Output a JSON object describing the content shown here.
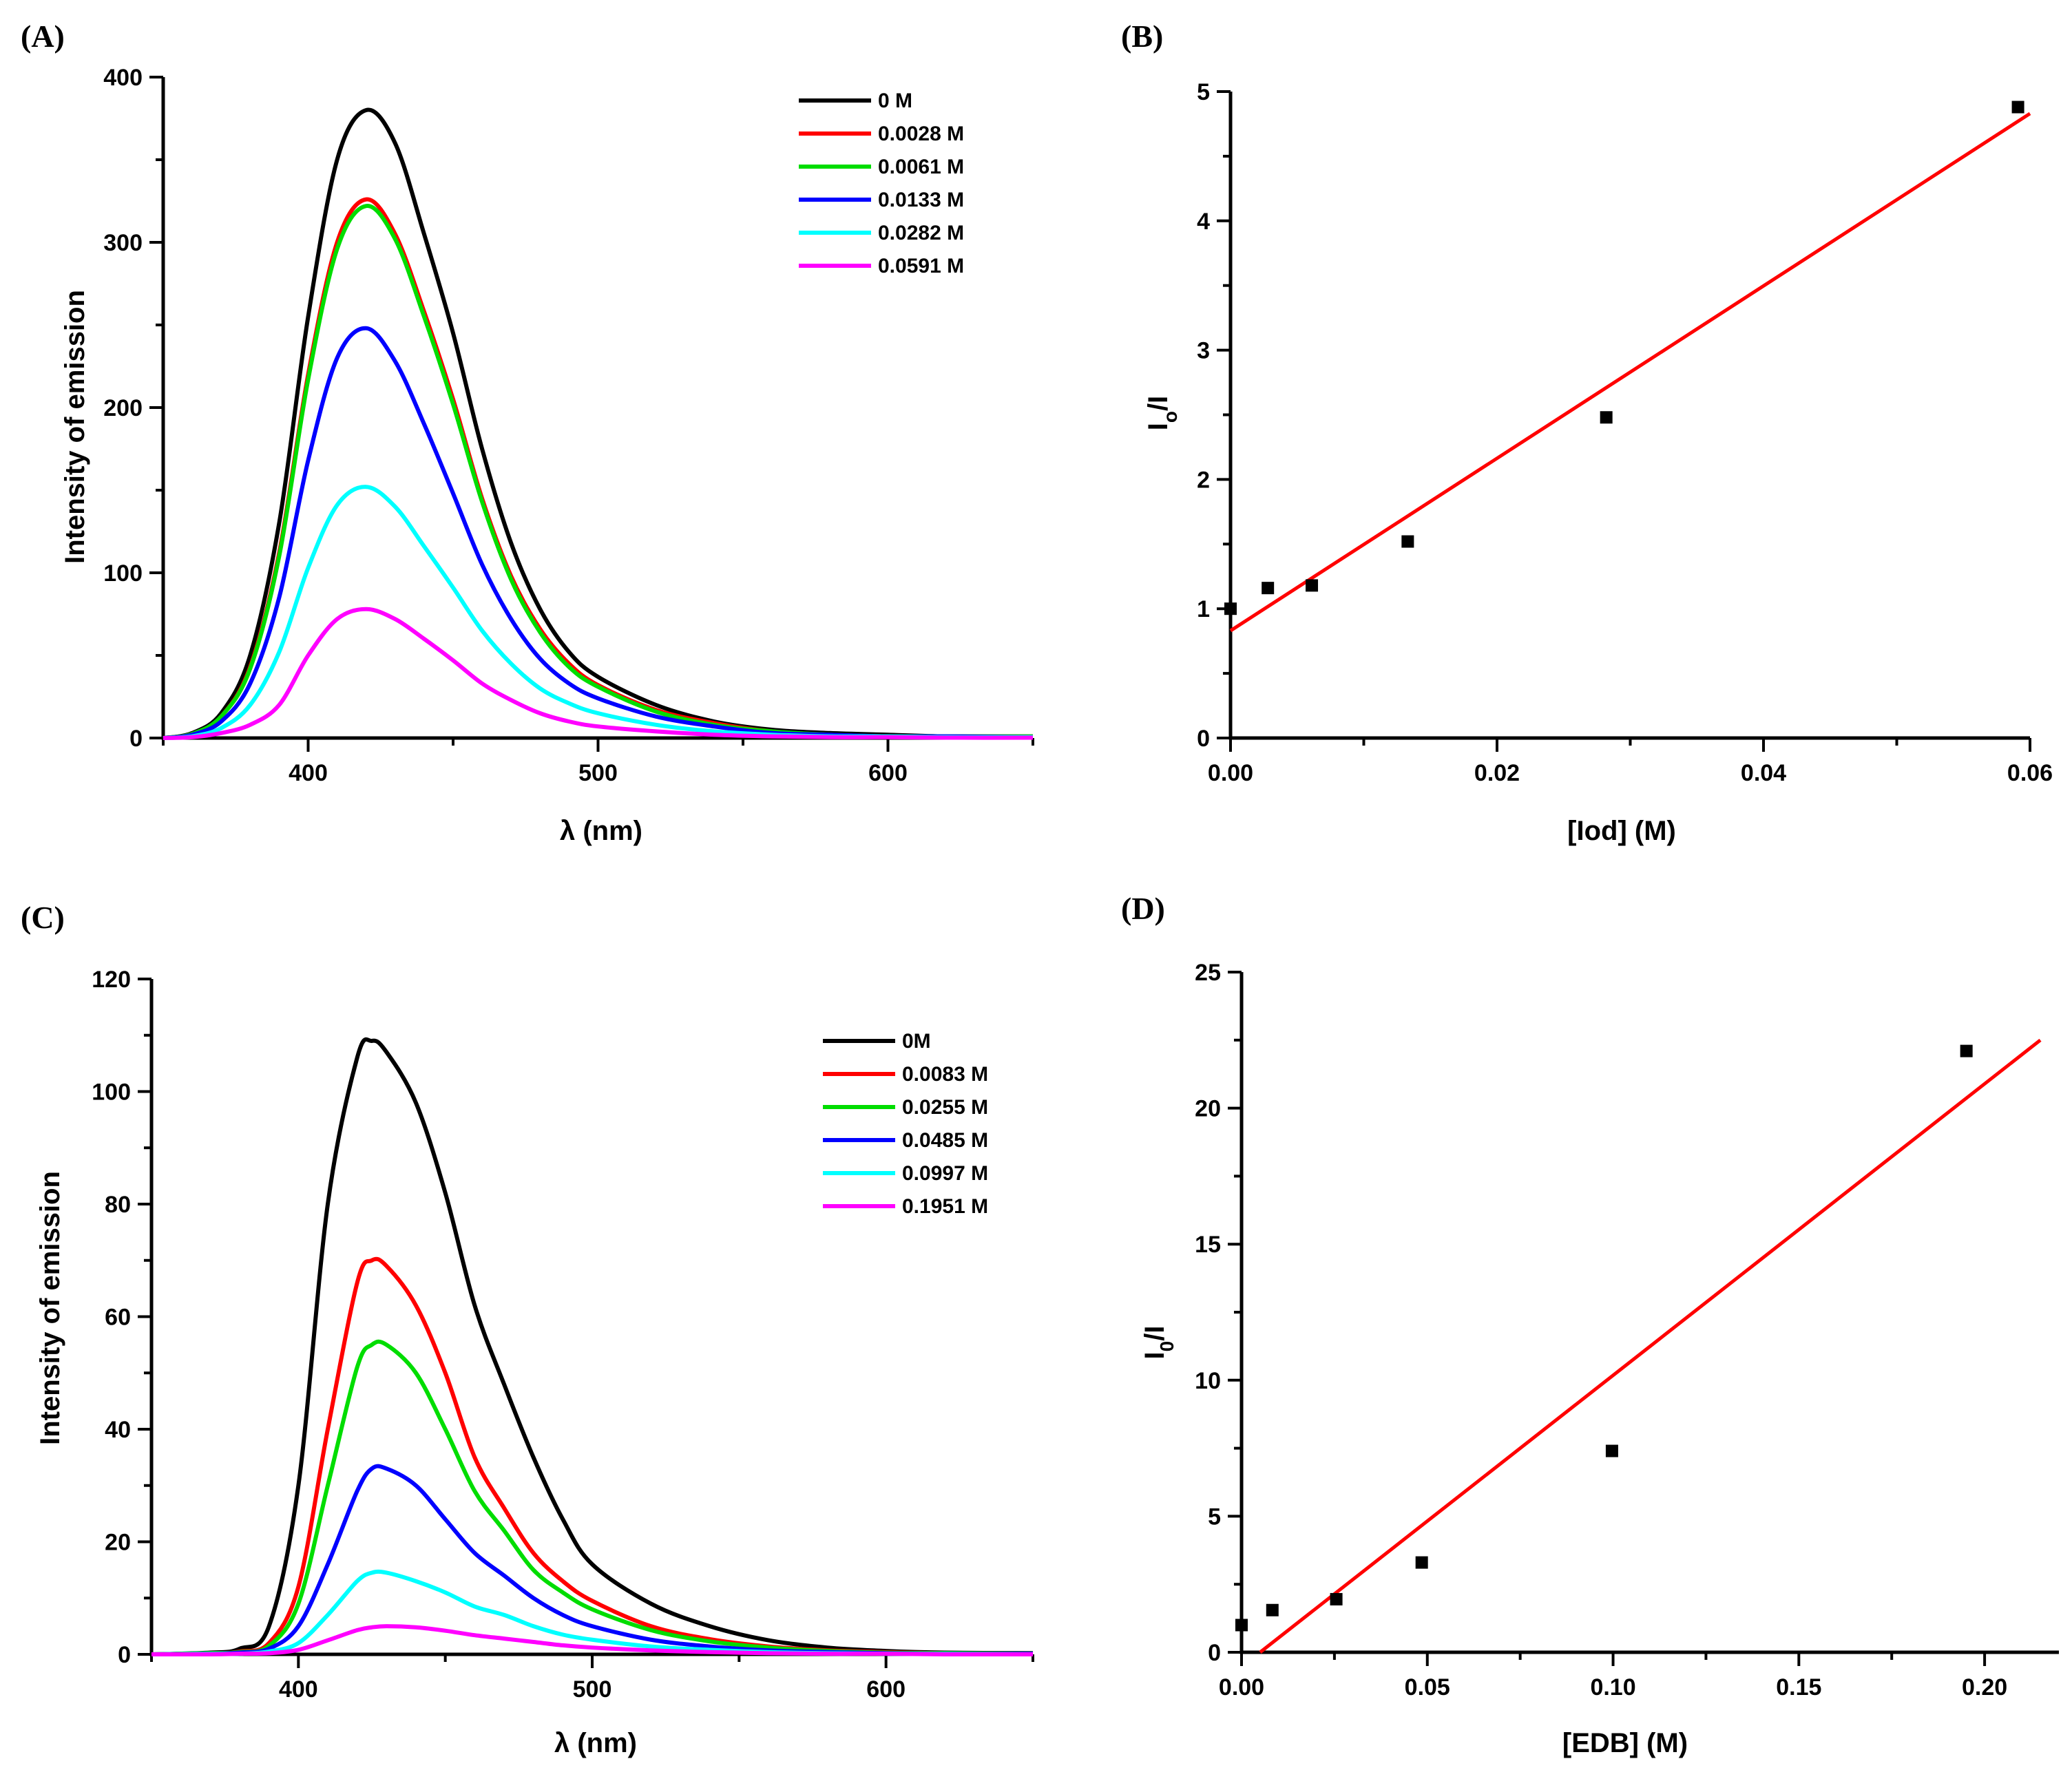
{
  "chart_data": [
    {
      "id": "A",
      "panel_label": "(A)",
      "type": "line",
      "xlabel": "λ (nm)",
      "ylabel": "Intensity of emission",
      "xlim": [
        350,
        650
      ],
      "ylim": [
        0,
        400
      ],
      "xticks": [
        400,
        500,
        600
      ],
      "yticks": [
        0,
        100,
        200,
        300,
        400
      ],
      "x": [
        350,
        360,
        370,
        380,
        390,
        400,
        410,
        420,
        430,
        440,
        450,
        460,
        470,
        480,
        490,
        500,
        520,
        540,
        560,
        580,
        600,
        620,
        650
      ],
      "series": [
        {
          "name": "0 M",
          "color": "#000000",
          "values": [
            0,
            3,
            15,
            50,
            130,
            255,
            350,
            380,
            360,
            305,
            245,
            175,
            118,
            78,
            52,
            37,
            20,
            10,
            5,
            3,
            2,
            1,
            1
          ]
        },
        {
          "name": "0.0028 M",
          "color": "#ff0000",
          "values": [
            0,
            2.5,
            13,
            43,
            112,
            220,
            300,
            326,
            305,
            258,
            205,
            145,
            98,
            66,
            45,
            32,
            17,
            9,
            4,
            2,
            1,
            1,
            1
          ]
        },
        {
          "name": "0.0061 M",
          "color": "#00dd00",
          "values": [
            0,
            2.5,
            13,
            42,
            110,
            217,
            296,
            322,
            302,
            255,
            202,
            143,
            96,
            64,
            43,
            31,
            16,
            8,
            4,
            2,
            1,
            1,
            1
          ]
        },
        {
          "name": "0.0133 M",
          "color": "#0000ff",
          "values": [
            0,
            2,
            10,
            33,
            85,
            168,
            230,
            248,
            228,
            190,
            148,
            105,
            72,
            48,
            33,
            24,
            13,
            7,
            3,
            2,
            1,
            1,
            0.5
          ]
        },
        {
          "name": "0.0282 M",
          "color": "#00ffff",
          "values": [
            0,
            1,
            6,
            20,
            52,
            103,
            141,
            152,
            140,
            116,
            91,
            65,
            45,
            30,
            21,
            15,
            8,
            4,
            2,
            1,
            1,
            0.5,
            0.5
          ]
        },
        {
          "name": "0.0591 M",
          "color": "#ff00ff",
          "values": [
            0,
            0.5,
            3,
            8,
            20,
            50,
            72,
            78,
            72,
            60,
            47,
            33,
            23,
            15,
            10,
            7,
            4,
            2,
            1,
            0.5,
            0.5,
            0.2,
            0.2
          ]
        }
      ]
    },
    {
      "id": "B",
      "panel_label": "(B)",
      "type": "scatter",
      "xlabel": "[Iod] (M)",
      "ylabel_main": "I",
      "ylabel_sub": "o",
      "ylabel_rest": "/I",
      "xlim": [
        0,
        0.06
      ],
      "ylim": [
        0,
        5
      ],
      "xticks": [
        "0.00",
        "0.02",
        "0.04",
        "0.06"
      ],
      "yticks": [
        0,
        1,
        2,
        3,
        4,
        5
      ],
      "points": [
        [
          0,
          1.0
        ],
        [
          0.0028,
          1.16
        ],
        [
          0.0061,
          1.18
        ],
        [
          0.0133,
          1.52
        ],
        [
          0.0282,
          2.48
        ],
        [
          0.0591,
          4.88
        ]
      ],
      "fit": {
        "x": [
          0,
          0.06
        ],
        "y": [
          0.83,
          4.83
        ],
        "color": "#ff0000"
      }
    },
    {
      "id": "C",
      "panel_label": "(C)",
      "type": "line",
      "xlabel": "λ (nm)",
      "ylabel": "Intensity of emission",
      "xlim": [
        350,
        650
      ],
      "ylim": [
        0,
        120
      ],
      "xticks": [
        400,
        500,
        600
      ],
      "yticks": [
        0,
        20,
        40,
        60,
        80,
        100,
        120
      ],
      "x": [
        350,
        370,
        380,
        390,
        400,
        410,
        420,
        425,
        430,
        440,
        450,
        460,
        470,
        480,
        490,
        500,
        520,
        540,
        560,
        580,
        600,
        620,
        650
      ],
      "series": [
        {
          "name": "0M",
          "color": "#000000",
          "values": [
            0,
            0.3,
            1,
            5,
            30,
            80,
            106,
            109,
            107,
            98,
            82,
            62,
            48,
            35,
            24,
            16,
            9,
            5,
            2.5,
            1.2,
            0.6,
            0.3,
            0.2
          ]
        },
        {
          "name": "0.0083 M",
          "color": "#ff0000",
          "values": [
            0,
            0.2,
            0.5,
            2,
            12,
            40,
            66,
            70,
            69,
            62,
            50,
            35,
            26,
            18,
            13,
            9.5,
            5,
            2.7,
            1.4,
            0.7,
            0.4,
            0.2,
            0.1
          ]
        },
        {
          "name": "0.0255 M",
          "color": "#00dd00",
          "values": [
            0,
            0.2,
            0.4,
            1.5,
            9,
            30,
            51,
            55,
            55,
            50,
            40,
            29,
            22,
            15,
            11,
            8,
            4.3,
            2.3,
            1.2,
            0.6,
            0.3,
            0.2,
            0.1
          ]
        },
        {
          "name": "0.0485 M",
          "color": "#0000ff",
          "values": [
            0,
            0.1,
            0.3,
            1,
            5,
            16,
            29,
            33,
            33,
            30,
            24,
            18,
            14,
            10,
            7,
            5,
            2.6,
            1.4,
            0.7,
            0.4,
            0.2,
            0.1,
            0.1
          ]
        },
        {
          "name": "0.0997 M",
          "color": "#00ffff",
          "values": [
            0,
            0.1,
            0.1,
            0.5,
            2,
            7,
            13,
            14.5,
            14.5,
            13,
            11,
            8.5,
            7,
            5,
            3.5,
            2.6,
            1.4,
            0.8,
            0.4,
            0.2,
            0.1,
            0.1,
            0
          ]
        },
        {
          "name": "0.1951 M",
          "color": "#ff00ff",
          "values": [
            0,
            0,
            0.1,
            0.2,
            0.8,
            2.5,
            4.3,
            4.8,
            5,
            4.8,
            4.2,
            3.4,
            2.8,
            2.2,
            1.6,
            1.2,
            0.7,
            0.4,
            0.2,
            0.1,
            0.1,
            0,
            0
          ]
        }
      ]
    },
    {
      "id": "D",
      "panel_label": "(D)",
      "type": "scatter",
      "xlabel": "[EDB] (M)",
      "ylabel_main": "I",
      "ylabel_sub": "0",
      "ylabel_rest": "/I",
      "xlim": [
        0,
        0.22
      ],
      "ylim": [
        0,
        25
      ],
      "xticks": [
        "0.00",
        "0.05",
        "0.10",
        "0.15",
        "0.20"
      ],
      "yticks": [
        0,
        5,
        10,
        15,
        20,
        25
      ],
      "points": [
        [
          0,
          1.0
        ],
        [
          0.0083,
          1.55
        ],
        [
          0.0255,
          1.95
        ],
        [
          0.0485,
          3.3
        ],
        [
          0.0997,
          7.4
        ],
        [
          0.1951,
          22.1
        ]
      ],
      "fit": {
        "x": [
          0.005,
          0.215
        ],
        "y": [
          0,
          22.5
        ],
        "color": "#ff0000"
      }
    }
  ]
}
